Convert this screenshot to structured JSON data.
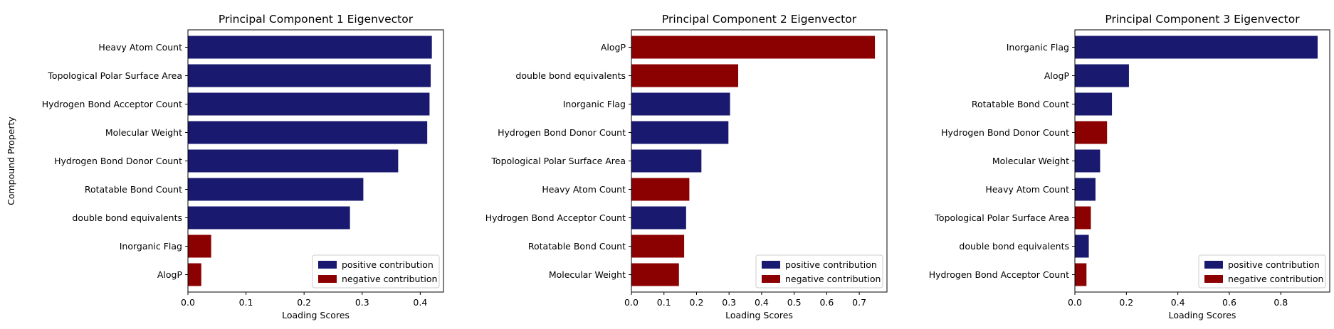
{
  "legend": {
    "positive_label": "positive contribution",
    "negative_label": "negative contribution"
  },
  "colors": {
    "positive": "#191970",
    "negative": "#8b0000"
  },
  "chart_data": [
    {
      "type": "bar",
      "orientation": "horizontal",
      "title": "Principal Component 1 Eigenvector",
      "xlabel": "Loading Scores",
      "ylabel": "Compound Property",
      "xlim": [
        0,
        0.44
      ],
      "xticks": [
        0.0,
        0.1,
        0.2,
        0.3,
        0.4
      ],
      "xtick_labels": [
        "0.0",
        "0.1",
        "0.2",
        "0.3",
        "0.4"
      ],
      "legend_position": "lower right",
      "grid": false,
      "categories": [
        "Heavy Atom Count",
        "Topological Polar Surface Area",
        "Hydrogen Bond Acceptor Count",
        "Molecular Weight",
        "Hydrogen Bond Donor Count",
        "Rotatable Bond Count",
        "double bond equivalents",
        "Inorganic Flag",
        "AlogP"
      ],
      "values": [
        0.42,
        0.418,
        0.416,
        0.412,
        0.362,
        0.302,
        0.279,
        0.04,
        0.023
      ],
      "sign": [
        "positive",
        "positive",
        "positive",
        "positive",
        "positive",
        "positive",
        "positive",
        "negative",
        "negative"
      ]
    },
    {
      "type": "bar",
      "orientation": "horizontal",
      "title": "Principal Component 2 Eigenvector",
      "xlabel": "Loading Scores",
      "ylabel": "",
      "xlim": [
        0,
        0.785
      ],
      "xticks": [
        0.0,
        0.1,
        0.2,
        0.3,
        0.4,
        0.5,
        0.6,
        0.7
      ],
      "xtick_labels": [
        "0.0",
        "0.1",
        "0.2",
        "0.3",
        "0.4",
        "0.5",
        "0.6",
        "0.7"
      ],
      "legend_position": "lower right",
      "grid": false,
      "categories": [
        "AlogP",
        "double bond equivalents",
        "Inorganic Flag",
        "Hydrogen Bond Donor Count",
        "Topological Polar Surface Area",
        "Heavy Atom Count",
        "Hydrogen Bond Acceptor Count",
        "Rotatable Bond Count",
        "Molecular Weight"
      ],
      "values": [
        0.748,
        0.328,
        0.303,
        0.298,
        0.215,
        0.178,
        0.168,
        0.162,
        0.146
      ],
      "sign": [
        "negative",
        "negative",
        "positive",
        "positive",
        "positive",
        "negative",
        "positive",
        "negative",
        "negative"
      ]
    },
    {
      "type": "bar",
      "orientation": "horizontal",
      "title": "Principal Component 3 Eigenvector",
      "xlabel": "Loading Scores",
      "ylabel": "",
      "xlim": [
        0,
        0.99
      ],
      "xticks": [
        0.0,
        0.2,
        0.4,
        0.6,
        0.8
      ],
      "xtick_labels": [
        "0.0",
        "0.2",
        "0.4",
        "0.6",
        "0.8"
      ],
      "legend_position": "lower right",
      "grid": false,
      "categories": [
        "Inorganic Flag",
        "AlogP",
        "Rotatable Bond Count",
        "Hydrogen Bond Donor Count",
        "Molecular Weight",
        "Heavy Atom Count",
        "Topological Polar Surface Area",
        "double bond equivalents",
        "Hydrogen Bond Acceptor Count"
      ],
      "values": [
        0.943,
        0.21,
        0.144,
        0.125,
        0.098,
        0.08,
        0.062,
        0.054,
        0.045
      ],
      "sign": [
        "positive",
        "positive",
        "positive",
        "negative",
        "positive",
        "positive",
        "negative",
        "positive",
        "negative"
      ]
    }
  ]
}
